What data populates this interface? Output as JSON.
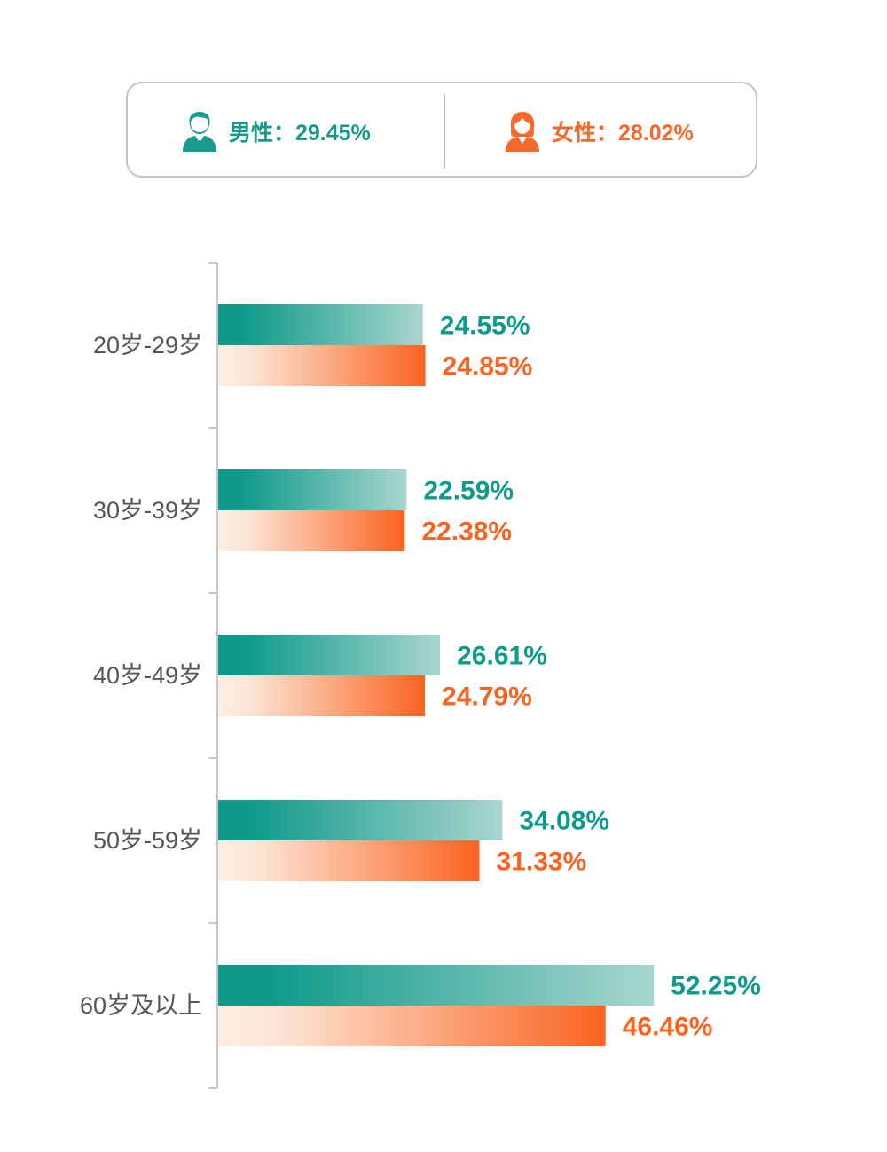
{
  "legend": {
    "male": {
      "label": "男性：29.45%",
      "icon": "male-person-icon",
      "color": "#17998a"
    },
    "female": {
      "label": "女性：28.02%",
      "icon": "female-person-icon",
      "color": "#f5692a"
    }
  },
  "chart_data": {
    "type": "bar",
    "orientation": "horizontal",
    "categories": [
      "20岁-29岁",
      "30岁-39岁",
      "40岁-49岁",
      "50岁-59岁",
      "60岁及以上"
    ],
    "series": [
      {
        "name": "男性",
        "values": [
          24.55,
          22.59,
          26.61,
          34.08,
          52.25
        ],
        "labels": [
          "24.55%",
          "22.59%",
          "26.61%",
          "34.08%",
          "52.25%"
        ],
        "color": "#0e9a8a"
      },
      {
        "name": "女性",
        "values": [
          24.85,
          22.38,
          24.79,
          31.33,
          46.46
        ],
        "labels": [
          "24.85%",
          "22.38%",
          "24.79%",
          "31.33%",
          "46.46%"
        ],
        "color": "#fb6320"
      }
    ],
    "unit": "%",
    "grid": false
  }
}
